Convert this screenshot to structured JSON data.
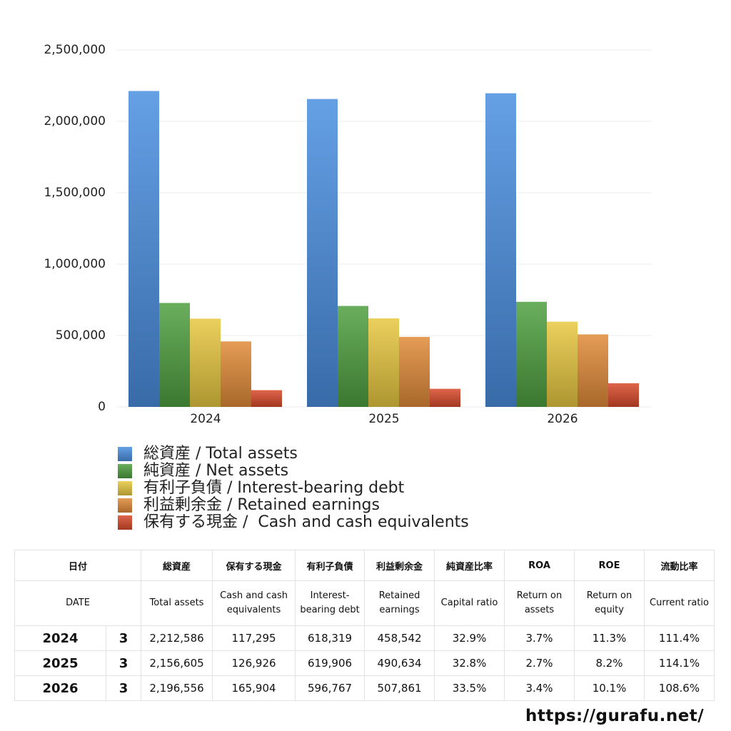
{
  "chart_data": {
    "type": "bar",
    "categories": [
      "2024",
      "2025",
      "2026"
    ],
    "series": [
      {
        "name": "総資産 / Total assets",
        "color": "#4a8fe0",
        "values": [
          2212586,
          2156605,
          2196556
        ]
      },
      {
        "name": "純資産 / Net assets",
        "color": "#4fa040",
        "values": [
          728000,
          707000,
          736000
        ]
      },
      {
        "name": "有利子負債 / Interest-bearing debt",
        "color": "#e8c840",
        "values": [
          618319,
          619906,
          596767
        ]
      },
      {
        "name": "利益剰余金 / Retained earnings",
        "color": "#e08a38",
        "values": [
          458542,
          490634,
          507861
        ]
      },
      {
        "name": "保有する現金 /  Cash and cash equivalents",
        "color": "#d84a2a",
        "values": [
          117295,
          126926,
          165904
        ]
      }
    ],
    "ylim": [
      0,
      2500000
    ],
    "yticks": [
      0,
      {
        "value": 500000,
        "label": "500,000"
      },
      {
        "value": 1000000,
        "label": "1,000,000"
      },
      {
        "value": 1500000,
        "label": "1,500,000"
      },
      {
        "value": 2000000,
        "label": "2,000,000"
      },
      {
        "value": 2500000,
        "label": "2,500,000"
      }
    ],
    "grid": true
  },
  "table": {
    "header": [
      "日付",
      "総資産",
      "保有する現金",
      "有利子負債",
      "利益剰余金",
      "純資産比率",
      "ROA",
      "ROE",
      "流動比率"
    ],
    "subheader": [
      "DATE",
      "Total assets",
      "Cash and cash equivalents",
      "Interest-bearing debt",
      "Retained earnings",
      "Capital ratio",
      "Return on assets",
      "Return on equity",
      "Current ratio"
    ],
    "rows": [
      [
        "2024",
        "3",
        "2,212,586",
        "117,295",
        "618,319",
        "458,542",
        "32.9%",
        "3.7%",
        "11.3%",
        "111.4%"
      ],
      [
        "2025",
        "3",
        "2,156,605",
        "126,926",
        "619,906",
        "490,634",
        "32.8%",
        "2.7%",
        "8.2%",
        "114.1%"
      ],
      [
        "2026",
        "3",
        "2,196,556",
        "165,904",
        "596,767",
        "507,861",
        "33.5%",
        "3.4%",
        "10.1%",
        "108.6%"
      ]
    ]
  },
  "footer": "https://gurafu.net/"
}
